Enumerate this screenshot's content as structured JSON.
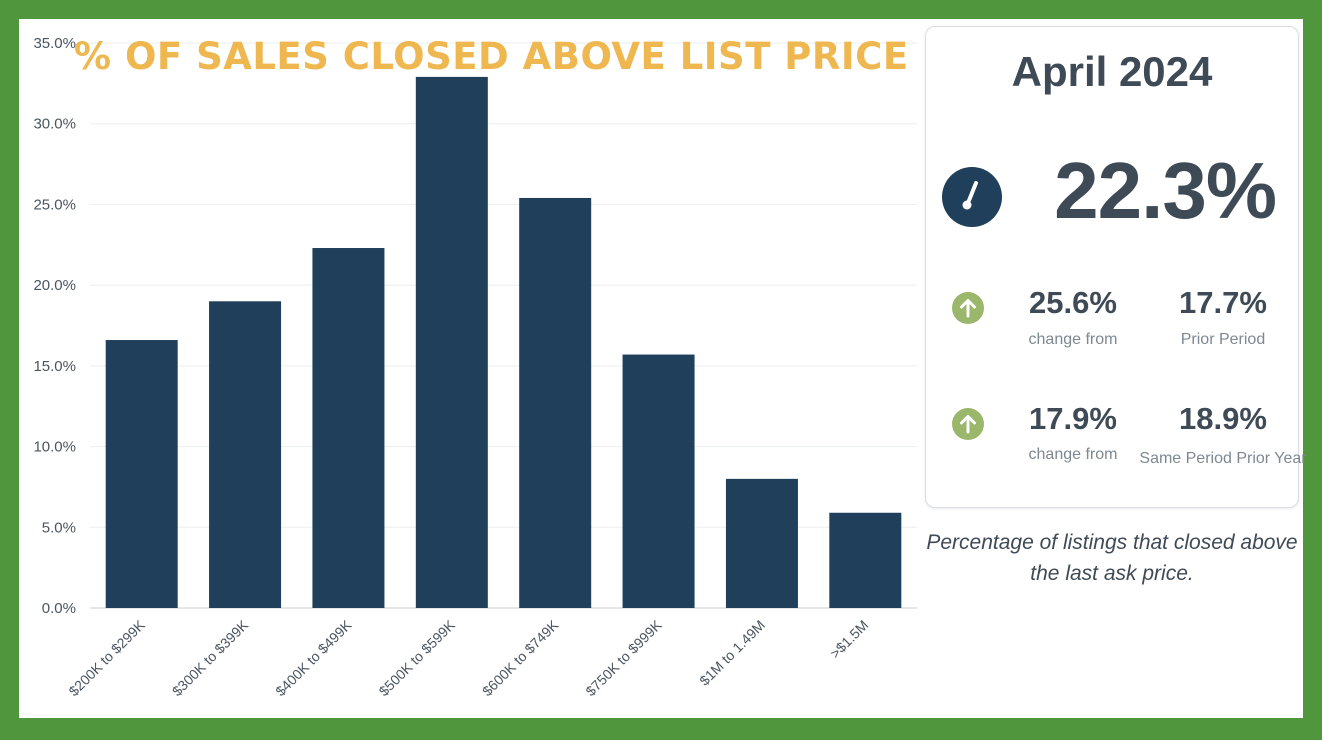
{
  "chart_data": {
    "type": "bar",
    "title": "% OF SALES CLOSED ABOVE LIST PRICE",
    "xlabel": "",
    "ylabel": "",
    "categories": [
      "$200K to $299K",
      "$300K to $399K",
      "$400K to $499K",
      "$500K to $599K",
      "$600K to $749K",
      "$750K to $999K",
      "$1M to 1.49M",
      ">$1.5M"
    ],
    "values": [
      16.6,
      19.0,
      22.3,
      32.9,
      25.4,
      15.7,
      8.0,
      5.9
    ],
    "ylim": [
      0,
      35
    ],
    "yticks": [
      "0.0%",
      "5.0%",
      "10.0%",
      "15.0%",
      "20.0%",
      "25.0%",
      "30.0%",
      "35.0%"
    ],
    "grid": true,
    "bar_color": "#1f3f5b"
  },
  "summary": {
    "period": "April 2024",
    "value": "22.3%",
    "gauge_icon": "gauge-icon",
    "rows": [
      {
        "icon": "arrow-up-icon",
        "change": "25.6%",
        "change_label": "change from",
        "compare": "17.7%",
        "compare_label": "Prior Period"
      },
      {
        "icon": "arrow-up-icon",
        "change": "17.9%",
        "change_label": "change from",
        "compare": "18.9%",
        "compare_label": "Same Period Prior Year"
      }
    ]
  },
  "caption": "Percentage of listings that closed above the last ask price.",
  "colors": {
    "border": "#4f963c",
    "title": "#eeb74f",
    "up_icon": "#9bb76b",
    "text": "#3e4a55"
  }
}
